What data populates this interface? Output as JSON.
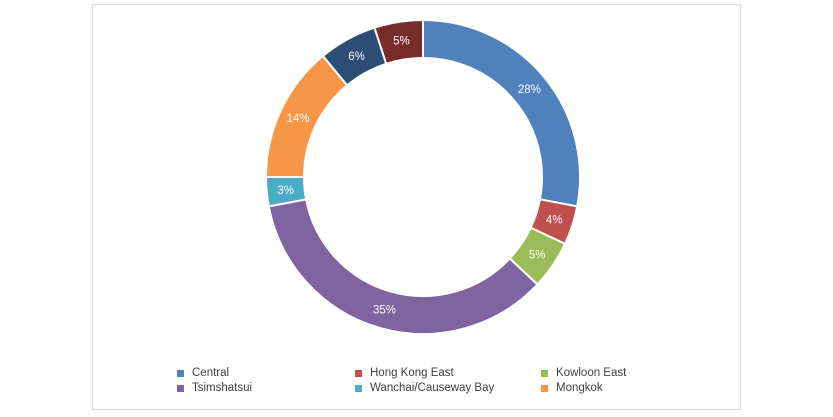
{
  "chart_data": {
    "type": "pie",
    "variant": "donut",
    "title": "",
    "legend_position": "bottom",
    "slices": [
      {
        "label": "Central",
        "value": 28,
        "display": "28%",
        "color": "#4f81bd"
      },
      {
        "label": "Hong Kong East",
        "value": 4,
        "display": "4%",
        "color": "#c0504d"
      },
      {
        "label": "Kowloon East",
        "value": 5,
        "display": "5%",
        "color": "#9bbb59"
      },
      {
        "label": "Tsimshatsui",
        "value": 35,
        "display": "35%",
        "color": "#8064a2"
      },
      {
        "label": "Wanchai/Causeway Bay",
        "value": 3,
        "display": "3%",
        "color": "#4bacc6"
      },
      {
        "label": "Mongkok",
        "value": 14,
        "display": "14%",
        "color": "#f79646"
      },
      {
        "label": "",
        "value": 6,
        "display": "6%",
        "color": "#2c4d75"
      },
      {
        "label": "",
        "value": 5,
        "display": "5%",
        "color": "#772c2a"
      }
    ]
  }
}
